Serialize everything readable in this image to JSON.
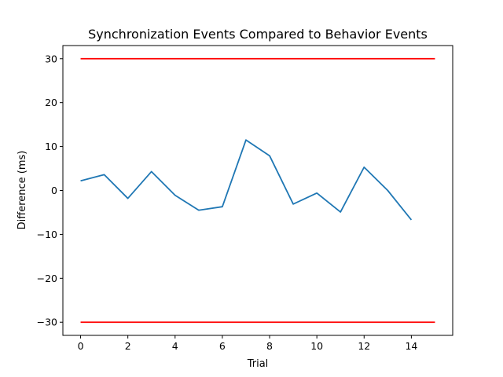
{
  "chart_data": {
    "type": "line",
    "title": "Synchronization Events Compared to Behavior Events",
    "xlabel": "Trial",
    "ylabel": "Difference (ms)",
    "xlim": [
      -0.75,
      15.75
    ],
    "ylim": [
      -33,
      33
    ],
    "xticks": [
      0,
      2,
      4,
      6,
      8,
      10,
      12,
      14
    ],
    "yticks": [
      -30,
      -20,
      -10,
      0,
      10,
      20,
      30
    ],
    "grid": false,
    "series": [
      {
        "color": "#1f77b4",
        "x": [
          0,
          1,
          2,
          3,
          4,
          5,
          6,
          7,
          8,
          9,
          10,
          11,
          12,
          13,
          14
        ],
        "values": [
          2.2,
          3.6,
          -1.8,
          4.3,
          -1.1,
          -4.5,
          -3.7,
          11.5,
          7.9,
          -3.1,
          -0.6,
          -4.9,
          5.3,
          0.0,
          -6.7
        ]
      },
      {
        "color": "#ff0000",
        "x": [
          0,
          15
        ],
        "values": [
          30,
          30
        ]
      },
      {
        "color": "#ff0000",
        "x": [
          0,
          15
        ],
        "values": [
          -30,
          -30
        ]
      }
    ]
  }
}
